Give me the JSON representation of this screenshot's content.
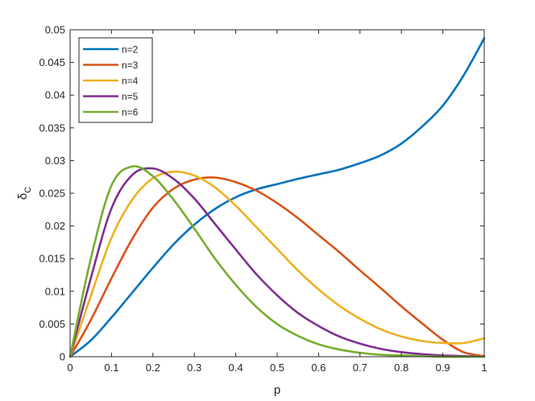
{
  "chart_data": {
    "type": "line",
    "title": "",
    "xlabel": "p",
    "ylabel_main": "δ",
    "ylabel_sub": "C",
    "xlim": [
      0,
      1
    ],
    "ylim": [
      0,
      0.05
    ],
    "xticks": [
      0,
      0.1,
      0.2,
      0.3,
      0.4,
      0.5,
      0.6,
      0.7,
      0.8,
      0.9,
      1
    ],
    "xtick_labels": [
      "0",
      "0.1",
      "0.2",
      "0.3",
      "0.4",
      "0.5",
      "0.6",
      "0.7",
      "0.8",
      "0.9",
      "1"
    ],
    "yticks": [
      0,
      0.005,
      0.01,
      0.015,
      0.02,
      0.025,
      0.03,
      0.035,
      0.04,
      0.045,
      0.05
    ],
    "ytick_labels": [
      "0",
      "0.005",
      "0.01",
      "0.015",
      "0.02",
      "0.025",
      "0.03",
      "0.035",
      "0.04",
      "0.045",
      "0.05"
    ],
    "grid": false,
    "legend_position": "top-left",
    "x": [
      0,
      0.05,
      0.1,
      0.15,
      0.2,
      0.25,
      0.3,
      0.35,
      0.4,
      0.45,
      0.5,
      0.55,
      0.6,
      0.65,
      0.7,
      0.75,
      0.8,
      0.85,
      0.9,
      0.95,
      1
    ],
    "series": [
      {
        "name": "n=2",
        "color": "#0072BD",
        "values": [
          0,
          0.0025,
          0.006,
          0.0098,
          0.0136,
          0.0172,
          0.0202,
          0.0226,
          0.0244,
          0.0256,
          0.0264,
          0.0272,
          0.0279,
          0.0286,
          0.0296,
          0.0308,
          0.0326,
          0.0352,
          0.0384,
          0.043,
          0.0487
        ]
      },
      {
        "name": "n=3",
        "color": "#D95319",
        "values": [
          0,
          0.0056,
          0.012,
          0.018,
          0.0228,
          0.0257,
          0.0271,
          0.0274,
          0.0267,
          0.0254,
          0.0235,
          0.0212,
          0.0186,
          0.016,
          0.0132,
          0.0105,
          0.0077,
          0.0051,
          0.0026,
          0.0007,
          0.0001
        ]
      },
      {
        "name": "n=4",
        "color": "#EDB120",
        "values": [
          0,
          0.0093,
          0.0182,
          0.024,
          0.0273,
          0.0283,
          0.0277,
          0.0259,
          0.0231,
          0.0198,
          0.0165,
          0.0132,
          0.0103,
          0.0078,
          0.0058,
          0.0042,
          0.0031,
          0.0024,
          0.0021,
          0.0021,
          0.0028
        ]
      },
      {
        "name": "n=5",
        "color": "#7E2F8E",
        "values": [
          0,
          0.012,
          0.0227,
          0.0278,
          0.0288,
          0.0272,
          0.0242,
          0.0203,
          0.0164,
          0.0126,
          0.0094,
          0.0067,
          0.0047,
          0.0031,
          0.002,
          0.0012,
          0.0007,
          0.0004,
          0.0002,
          0.0001,
          0.0
        ]
      },
      {
        "name": "n=6",
        "color": "#77AC30",
        "values": [
          0,
          0.015,
          0.0262,
          0.0291,
          0.0276,
          0.024,
          0.0196,
          0.015,
          0.011,
          0.0076,
          0.005,
          0.0032,
          0.0019,
          0.0011,
          0.0006,
          0.0003,
          0.0002,
          0.0001,
          0.0,
          0.0,
          0.0
        ]
      }
    ]
  }
}
